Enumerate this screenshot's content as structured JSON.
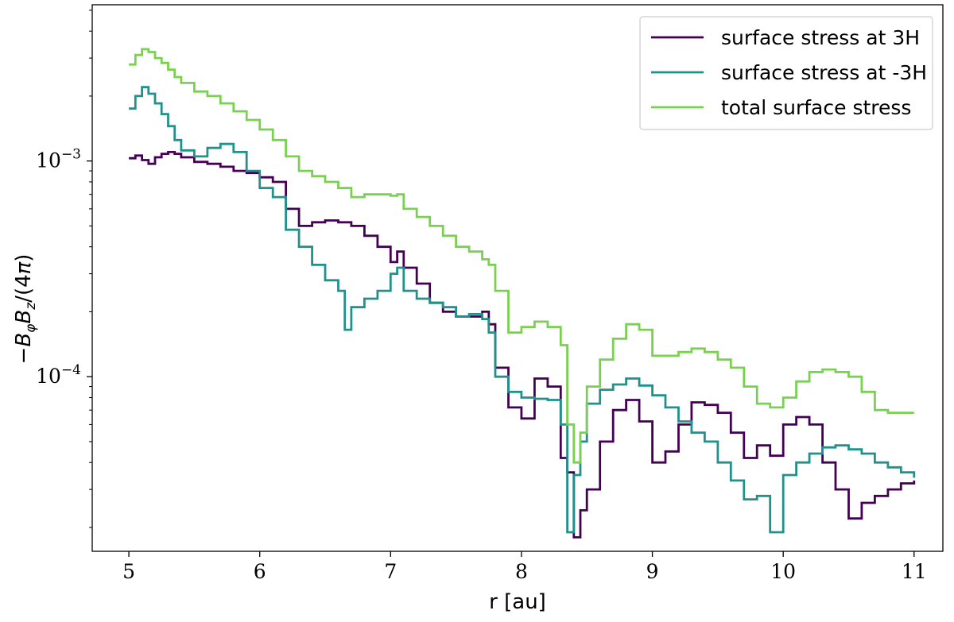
{
  "chart_data": {
    "type": "line",
    "xlabel": "r [au]",
    "ylabel": "−B_φB_z/(4π)",
    "x_scale": "linear",
    "y_scale": "log",
    "xlim": [
      4.72,
      11.22
    ],
    "ylim": [
      1.55e-05,
      0.0053
    ],
    "x_ticks": [
      5,
      6,
      7,
      8,
      9,
      10,
      11
    ],
    "x_tick_labels": [
      "5",
      "6",
      "7",
      "8",
      "9",
      "10",
      "11"
    ],
    "y_ticks": [
      0.001,
      0.0001
    ],
    "y_tick_labels": [
      "10^{-3}",
      "10^{-4}"
    ],
    "grid": false,
    "legend_position": "top-right",
    "series": [
      {
        "name": "surface stress at 3H",
        "color": "#440154",
        "x": [
          5.0,
          5.05,
          5.1,
          5.15,
          5.2,
          5.25,
          5.3,
          5.35,
          5.4,
          5.5,
          5.6,
          5.7,
          5.8,
          5.9,
          6.0,
          6.1,
          6.2,
          6.3,
          6.4,
          6.5,
          6.6,
          6.7,
          6.8,
          6.9,
          7.0,
          7.05,
          7.1,
          7.2,
          7.3,
          7.4,
          7.5,
          7.6,
          7.7,
          7.75,
          7.8,
          7.9,
          8.0,
          8.1,
          8.2,
          8.3,
          8.35,
          8.4,
          8.45,
          8.5,
          8.6,
          8.7,
          8.8,
          8.9,
          9.0,
          9.1,
          9.2,
          9.3,
          9.4,
          9.5,
          9.6,
          9.7,
          9.8,
          9.9,
          10.0,
          10.1,
          10.2,
          10.3,
          10.4,
          10.5,
          10.6,
          10.7,
          10.8,
          10.9,
          11.0
        ],
        "y": [
          0.00103,
          0.00106,
          0.00101,
          0.00097,
          0.00104,
          0.00108,
          0.0011,
          0.00108,
          0.00104,
          0.00099,
          0.00097,
          0.00094,
          0.0009,
          0.00088,
          0.00084,
          0.0008,
          0.0006,
          0.0005,
          0.00052,
          0.00053,
          0.00052,
          0.0005,
          0.00045,
          0.0004,
          0.00034,
          0.00038,
          0.00032,
          0.00027,
          0.00022,
          0.0002,
          0.00019,
          0.00019,
          0.0002,
          0.000175,
          0.00011,
          7.2e-05,
          6.4e-05,
          9.8e-05,
          9e-05,
          4.2e-05,
          3.6e-05,
          1.8e-05,
          2.4e-05,
          3e-05,
          5e-05,
          7e-05,
          7.8e-05,
          6.2e-05,
          4e-05,
          4.5e-05,
          6e-05,
          7.6e-05,
          7.4e-05,
          6.8e-05,
          5.5e-05,
          4.2e-05,
          4.8e-05,
          4.3e-05,
          6e-05,
          6.5e-05,
          6e-05,
          4e-05,
          3e-05,
          2.2e-05,
          2.6e-05,
          2.8e-05,
          3e-05,
          3.2e-05,
          3.3e-05
        ]
      },
      {
        "name": "surface stress at -3H",
        "color": "#21918c",
        "x": [
          5.0,
          5.05,
          5.1,
          5.15,
          5.2,
          5.25,
          5.3,
          5.35,
          5.4,
          5.5,
          5.6,
          5.7,
          5.8,
          5.9,
          6.0,
          6.1,
          6.2,
          6.3,
          6.4,
          6.5,
          6.6,
          6.65,
          6.7,
          6.8,
          6.9,
          7.0,
          7.05,
          7.1,
          7.2,
          7.3,
          7.4,
          7.5,
          7.6,
          7.7,
          7.75,
          7.8,
          7.9,
          8.0,
          8.1,
          8.2,
          8.3,
          8.35,
          8.4,
          8.45,
          8.5,
          8.6,
          8.7,
          8.8,
          8.9,
          9.0,
          9.1,
          9.2,
          9.3,
          9.4,
          9.5,
          9.6,
          9.7,
          9.8,
          9.9,
          10.0,
          10.1,
          10.2,
          10.3,
          10.4,
          10.5,
          10.6,
          10.7,
          10.8,
          10.9,
          11.0
        ],
        "y": [
          0.00175,
          0.002,
          0.0022,
          0.00205,
          0.00185,
          0.00165,
          0.00145,
          0.00125,
          0.00112,
          0.00105,
          0.00115,
          0.0012,
          0.0011,
          0.0009,
          0.00075,
          0.00068,
          0.00048,
          0.0004,
          0.00033,
          0.00028,
          0.00025,
          0.000165,
          0.00021,
          0.00023,
          0.00025,
          0.0003,
          0.00032,
          0.00025,
          0.00023,
          0.00022,
          0.00021,
          0.00019,
          0.000195,
          0.000185,
          0.00016,
          0.0001,
          8.5e-05,
          8e-05,
          7.9e-05,
          7.8e-05,
          6e-05,
          1.9e-05,
          3.5e-05,
          5e-05,
          7.5e-05,
          8.7e-05,
          9.2e-05,
          9.8e-05,
          9.1e-05,
          8.2e-05,
          7.2e-05,
          6.2e-05,
          5.5e-05,
          5e-05,
          4e-05,
          3.3e-05,
          2.7e-05,
          2.8e-05,
          1.9e-05,
          3.5e-05,
          4e-05,
          4.4e-05,
          4.7e-05,
          4.8e-05,
          4.6e-05,
          4.4e-05,
          4e-05,
          3.8e-05,
          3.6e-05,
          3.4e-05
        ]
      },
      {
        "name": "total surface stress",
        "color": "#7ad151",
        "x": [
          5.0,
          5.05,
          5.1,
          5.15,
          5.2,
          5.25,
          5.3,
          5.35,
          5.4,
          5.5,
          5.6,
          5.7,
          5.8,
          5.9,
          6.0,
          6.1,
          6.2,
          6.3,
          6.4,
          6.5,
          6.6,
          6.7,
          6.8,
          6.9,
          7.0,
          7.05,
          7.1,
          7.2,
          7.3,
          7.4,
          7.5,
          7.6,
          7.7,
          7.75,
          7.8,
          7.9,
          8.0,
          8.1,
          8.2,
          8.3,
          8.35,
          8.4,
          8.45,
          8.5,
          8.6,
          8.7,
          8.8,
          8.9,
          9.0,
          9.1,
          9.2,
          9.3,
          9.4,
          9.5,
          9.6,
          9.7,
          9.8,
          9.9,
          10.0,
          10.1,
          10.2,
          10.3,
          10.4,
          10.5,
          10.6,
          10.7,
          10.8,
          10.9,
          11.0
        ],
        "y": [
          0.0028,
          0.0031,
          0.0033,
          0.0032,
          0.003,
          0.00285,
          0.00265,
          0.00245,
          0.0023,
          0.0021,
          0.002,
          0.00185,
          0.0017,
          0.00155,
          0.0014,
          0.00125,
          0.00105,
          0.0009,
          0.00085,
          0.0008,
          0.00075,
          0.00068,
          0.0007,
          0.0007,
          0.00069,
          0.0007,
          0.0006,
          0.00055,
          0.0005,
          0.00045,
          0.0004,
          0.00038,
          0.00035,
          0.00033,
          0.00025,
          0.00016,
          0.00017,
          0.00018,
          0.00017,
          0.00014,
          6e-05,
          4e-05,
          5.5e-05,
          9e-05,
          0.00012,
          0.00015,
          0.000175,
          0.000165,
          0.000125,
          0.000125,
          0.00013,
          0.000135,
          0.00013,
          0.00012,
          0.00011,
          9e-05,
          7.5e-05,
          7.2e-05,
          8e-05,
          9.5e-05,
          0.000105,
          0.000108,
          0.000105,
          0.0001,
          8.5e-05,
          7e-05,
          6.8e-05,
          6.8e-05,
          6.8e-05
        ]
      }
    ]
  }
}
